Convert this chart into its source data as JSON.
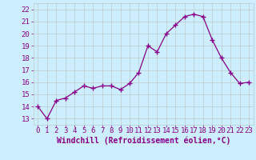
{
  "x": [
    0,
    1,
    2,
    3,
    4,
    5,
    6,
    7,
    8,
    9,
    10,
    11,
    12,
    13,
    14,
    15,
    16,
    17,
    18,
    19,
    20,
    21,
    22,
    23
  ],
  "y": [
    14.0,
    13.0,
    14.5,
    14.7,
    15.2,
    15.7,
    15.5,
    15.7,
    15.7,
    15.4,
    15.9,
    16.8,
    19.0,
    18.5,
    20.0,
    20.7,
    21.4,
    21.6,
    21.4,
    19.5,
    18.0,
    16.8,
    15.9,
    16.0
  ],
  "xlabel": "Windchill (Refroidissement éolien,°C)",
  "ylabel_ticks": [
    13,
    14,
    15,
    16,
    17,
    18,
    19,
    20,
    21,
    22
  ],
  "xlim": [
    -0.5,
    23.5
  ],
  "ylim": [
    12.5,
    22.5
  ],
  "line_color": "#880088",
  "marker_color": "#880088",
  "bg_color": "#cceeff",
  "grid_color": "#bbcccc",
  "xlabel_color": "#880088",
  "tick_color": "#880088",
  "font_size_tick": 6.5,
  "font_size_xlabel": 7.0
}
